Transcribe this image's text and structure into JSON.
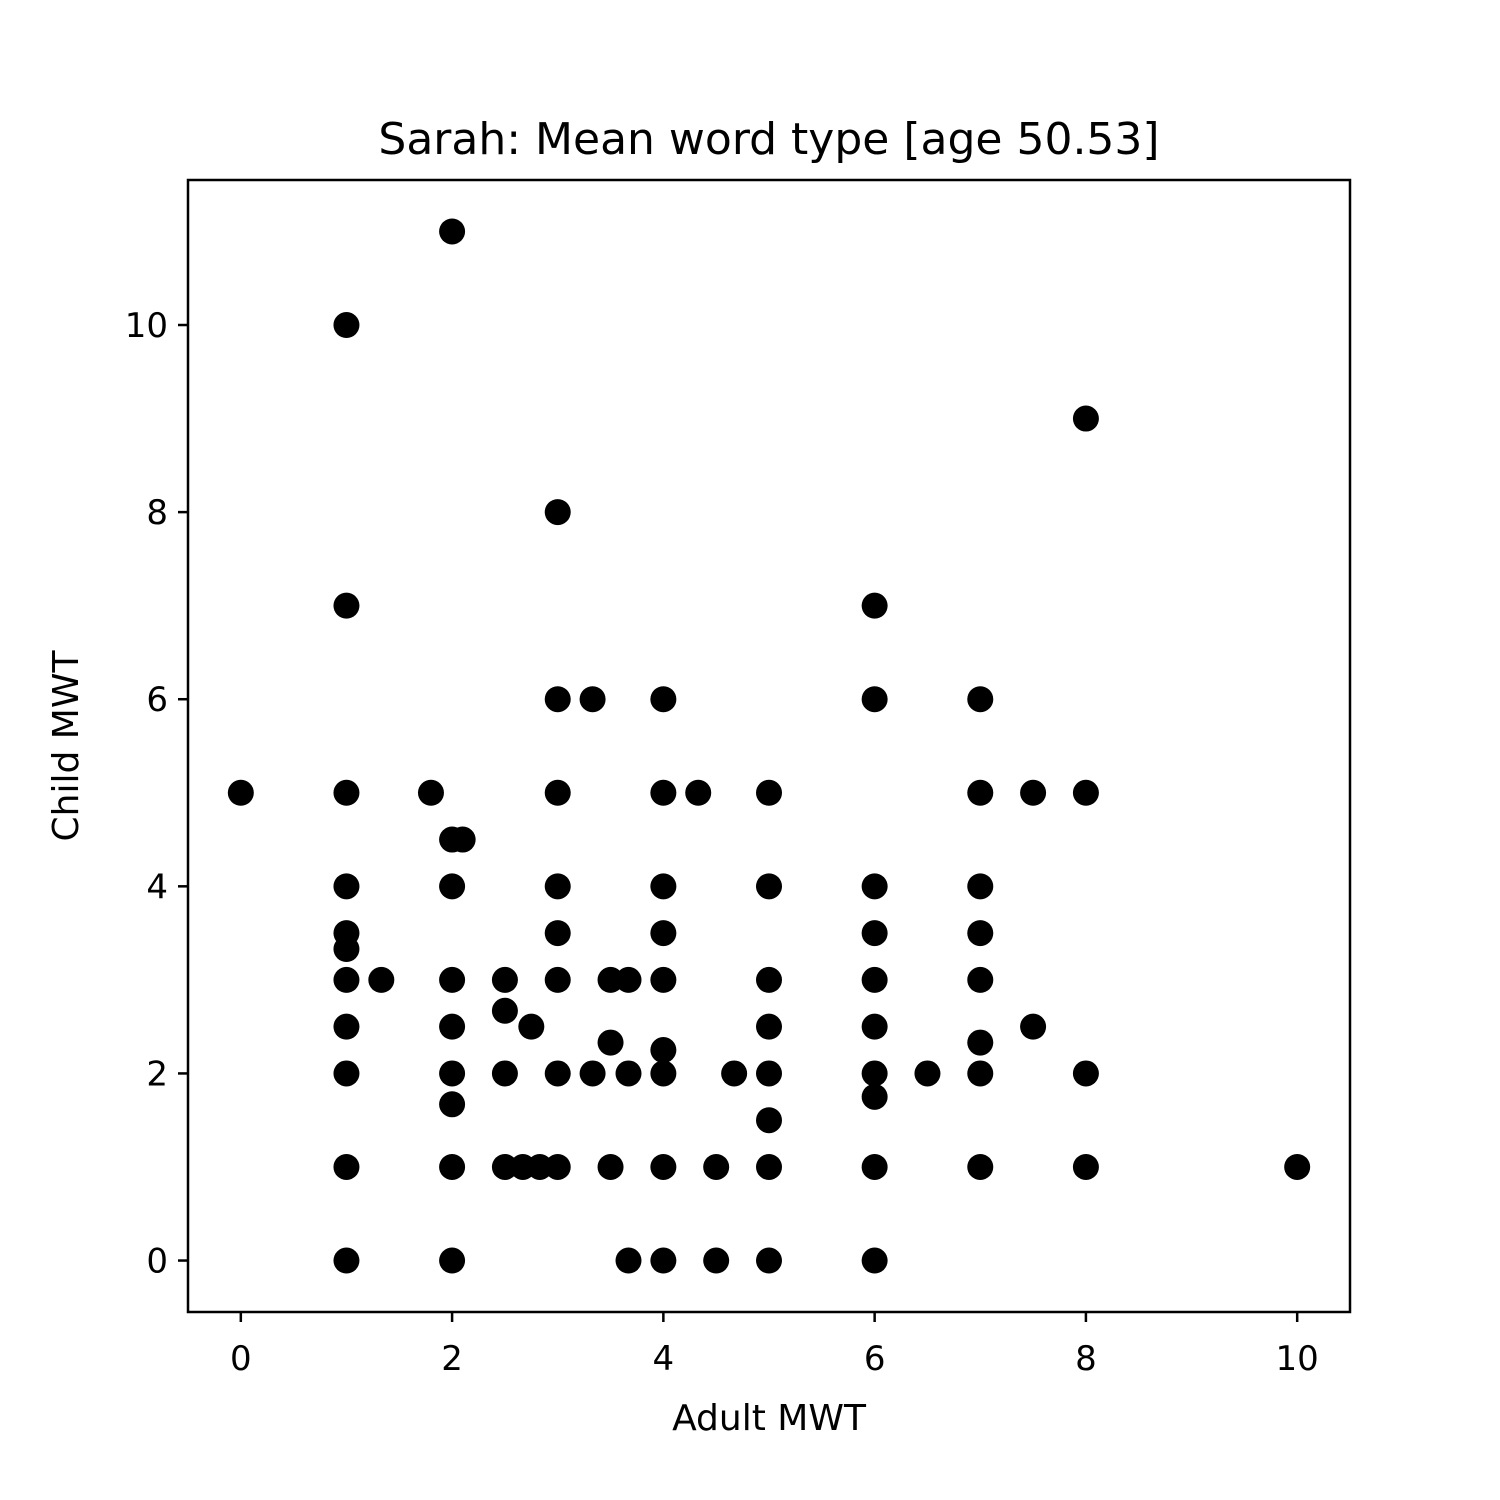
{
  "chart_data": {
    "type": "scatter",
    "title": "Sarah: Mean word type [age 50.53]",
    "xlabel": "Adult MWT",
    "ylabel": "Child MWT",
    "xlim": [
      -0.5,
      10.5
    ],
    "ylim": [
      -0.55,
      11.55
    ],
    "xticks": [
      0,
      2,
      4,
      6,
      8,
      10
    ],
    "yticks": [
      0,
      2,
      4,
      6,
      8,
      10
    ],
    "grid": false,
    "legend": "none",
    "marker_color": "#000000",
    "points": [
      [
        2,
        11
      ],
      [
        1,
        10
      ],
      [
        8,
        9
      ],
      [
        3,
        8
      ],
      [
        1,
        7
      ],
      [
        6,
        7
      ],
      [
        3,
        6
      ],
      [
        3.33,
        6
      ],
      [
        4,
        6
      ],
      [
        6,
        6
      ],
      [
        7,
        6
      ],
      [
        0,
        5
      ],
      [
        1,
        5
      ],
      [
        1.8,
        5
      ],
      [
        3,
        5
      ],
      [
        4,
        5
      ],
      [
        4.33,
        5
      ],
      [
        5,
        5
      ],
      [
        7,
        5
      ],
      [
        7.5,
        5
      ],
      [
        8,
        5
      ],
      [
        2,
        4.5
      ],
      [
        2.1,
        4.5
      ],
      [
        1,
        4
      ],
      [
        2,
        4
      ],
      [
        3,
        4
      ],
      [
        4,
        4
      ],
      [
        5,
        4
      ],
      [
        6,
        4
      ],
      [
        7,
        4
      ],
      [
        1,
        3.5
      ],
      [
        3,
        3.5
      ],
      [
        4,
        3.5
      ],
      [
        6,
        3.5
      ],
      [
        7,
        3.5
      ],
      [
        1,
        3.33
      ],
      [
        1,
        3
      ],
      [
        1.33,
        3
      ],
      [
        2,
        3
      ],
      [
        2.5,
        3
      ],
      [
        3,
        3
      ],
      [
        3.5,
        3
      ],
      [
        3.67,
        3
      ],
      [
        4,
        3
      ],
      [
        5,
        3
      ],
      [
        6,
        3
      ],
      [
        7,
        3
      ],
      [
        2.5,
        2.67
      ],
      [
        1,
        2.5
      ],
      [
        2,
        2.5
      ],
      [
        2.75,
        2.5
      ],
      [
        5,
        2.5
      ],
      [
        6,
        2.5
      ],
      [
        7.5,
        2.5
      ],
      [
        3.5,
        2.33
      ],
      [
        7,
        2.33
      ],
      [
        4,
        2.25
      ],
      [
        1,
        2
      ],
      [
        2,
        2
      ],
      [
        2.5,
        2
      ],
      [
        3,
        2
      ],
      [
        3.33,
        2
      ],
      [
        3.67,
        2
      ],
      [
        4,
        2
      ],
      [
        4.67,
        2
      ],
      [
        5,
        2
      ],
      [
        6,
        2
      ],
      [
        6.5,
        2
      ],
      [
        7,
        2
      ],
      [
        8,
        2
      ],
      [
        6,
        1.75
      ],
      [
        2,
        1.67
      ],
      [
        5,
        1.5
      ],
      [
        1,
        1
      ],
      [
        2,
        1
      ],
      [
        2.5,
        1
      ],
      [
        2.67,
        1
      ],
      [
        2.83,
        1
      ],
      [
        3,
        1
      ],
      [
        3.5,
        1
      ],
      [
        4,
        1
      ],
      [
        4.5,
        1
      ],
      [
        5,
        1
      ],
      [
        6,
        1
      ],
      [
        7,
        1
      ],
      [
        8,
        1
      ],
      [
        10,
        1
      ],
      [
        1,
        0
      ],
      [
        2,
        0
      ],
      [
        3.67,
        0
      ],
      [
        4,
        0
      ],
      [
        4.5,
        0
      ],
      [
        5,
        0
      ],
      [
        6,
        0
      ]
    ]
  }
}
